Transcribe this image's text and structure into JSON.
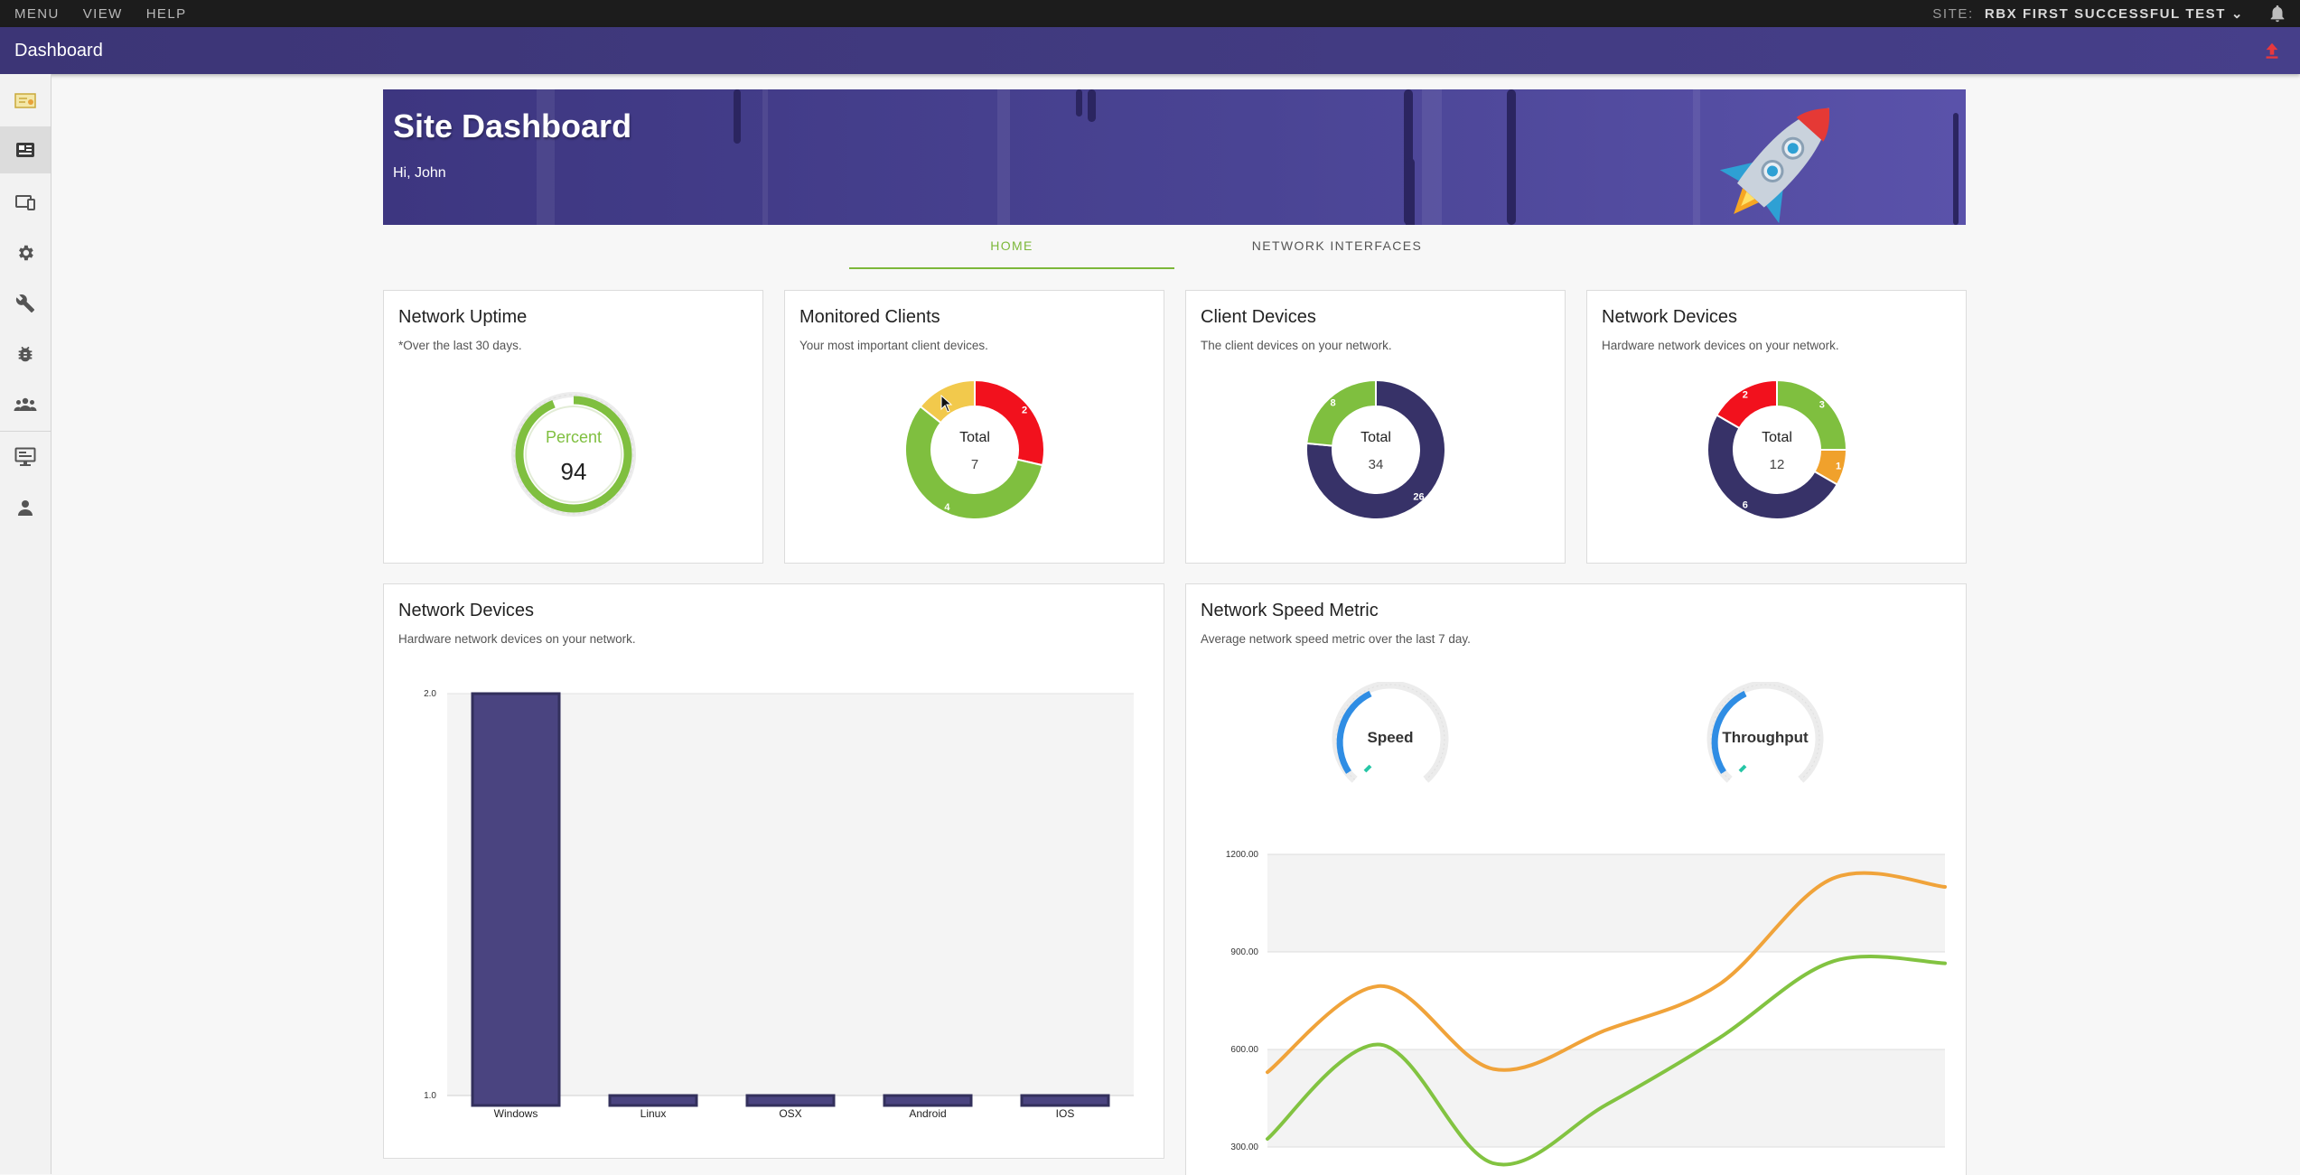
{
  "topbar": {
    "menu_items": [
      "MENU",
      "VIEW",
      "HELP"
    ],
    "site_label": "SITE:",
    "site_value": "RBX FIRST SUCCESSFUL TEST ⌄"
  },
  "header": {
    "title": "Dashboard"
  },
  "sidebar": {
    "items": [
      "certificate-icon",
      "dashboard-card-icon",
      "devices-icon",
      "settings-gear-icon",
      "wrench-icon",
      "bug-icon",
      "users-group-icon",
      "monitor-icon",
      "user-icon"
    ],
    "active_index": 1
  },
  "banner": {
    "title": "Site Dashboard",
    "greeting": "Hi, John"
  },
  "tabs": [
    "HOME",
    "NETWORK INTERFACES"
  ],
  "cards": {
    "uptime": {
      "title": "Network Uptime",
      "subtitle": "*Over the last 30 days.",
      "label": "Percent",
      "value": "94",
      "percent": 94
    },
    "monitored": {
      "title": "Monitored Clients",
      "subtitle": "Your most important client devices.",
      "center_label": "Total",
      "total": "7",
      "slices": [
        {
          "label": "2",
          "value": 2,
          "color": "#f2111d"
        },
        {
          "label": "4",
          "value": 4,
          "color": "#7fbf3f"
        },
        {
          "label": "",
          "value": 1,
          "color": "#f2c94c"
        }
      ]
    },
    "clients": {
      "title": "Client Devices",
      "subtitle": "The client devices on your network.",
      "center_label": "Total",
      "total": "34",
      "slices": [
        {
          "label": "26",
          "value": 26,
          "color": "#373268"
        },
        {
          "label": "8",
          "value": 8,
          "color": "#7fbf3f"
        }
      ]
    },
    "netdev": {
      "title": "Network Devices",
      "subtitle": "Hardware network devices on your network.",
      "center_label": "Total",
      "total": "12",
      "slices": [
        {
          "label": "3",
          "value": 3,
          "color": "#7fbf3f"
        },
        {
          "label": "1",
          "value": 1,
          "color": "#f0a12c"
        },
        {
          "label": "6",
          "value": 6,
          "color": "#373268"
        },
        {
          "label": "2",
          "value": 2,
          "color": "#f2111d"
        }
      ]
    },
    "netdev_bar": {
      "title": "Network Devices",
      "subtitle": "Hardware network devices on your network."
    },
    "speed": {
      "title": "Network Speed Metric",
      "subtitle": "Average network speed metric over the last 7 day.",
      "gauge1": "Speed",
      "gauge2": "Throughput"
    }
  },
  "chart_data": [
    {
      "type": "bar",
      "categories": [
        "Windows",
        "Linux",
        "OSX",
        "Android",
        "IOS"
      ],
      "values": [
        2,
        1,
        1,
        1,
        1
      ],
      "ylim": [
        1.0,
        2.0
      ],
      "yticks": [
        "2.0",
        "1.0"
      ],
      "color": "#4a4480"
    },
    {
      "type": "line",
      "ylim": [
        300,
        1200
      ],
      "yticks": [
        "1200.00",
        "900.00",
        "600.00",
        "300.00"
      ],
      "series": [
        {
          "values": [
            530,
            795,
            540,
            660,
            800,
            1125,
            1100
          ],
          "color": "#f0a33a"
        },
        {
          "values": [
            325,
            615,
            250,
            430,
            635,
            870,
            865
          ],
          "color": "#82c341"
        }
      ]
    }
  ]
}
